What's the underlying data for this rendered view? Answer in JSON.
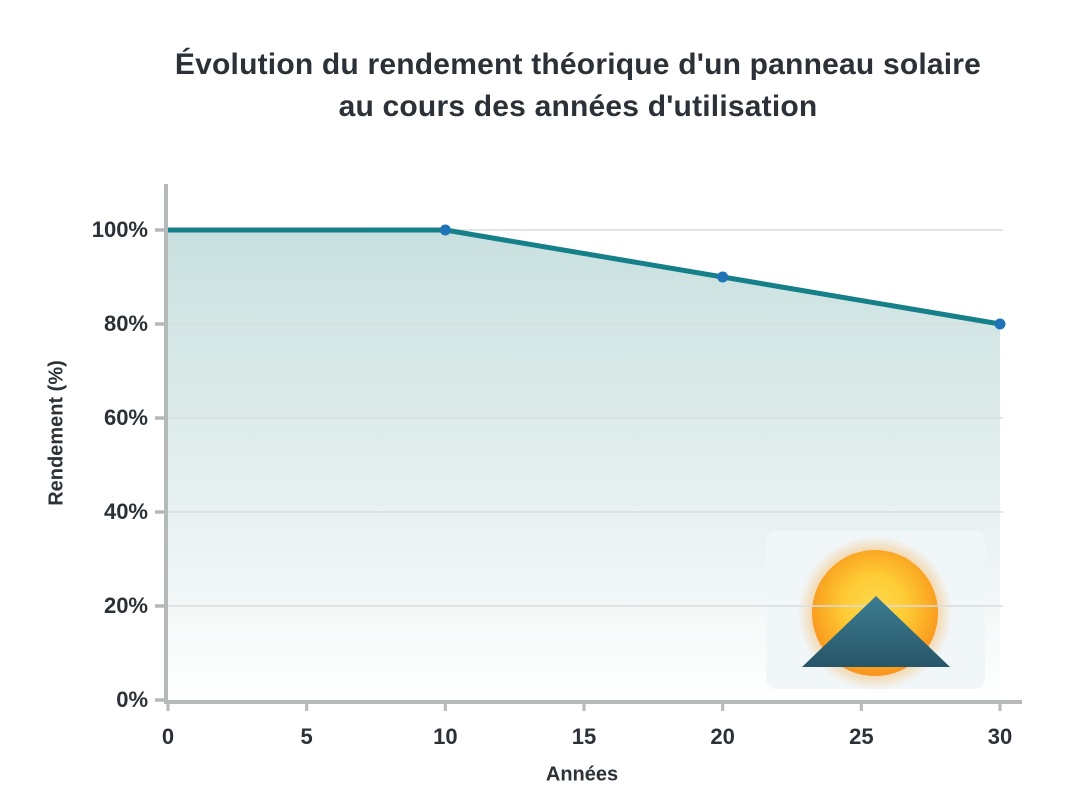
{
  "title": {
    "line1": "Évolution du rendement théorique d'un panneau solaire",
    "line2": "au cours des années d'utilisation"
  },
  "chart_data": {
    "type": "area",
    "x": [
      0,
      10,
      20,
      30
    ],
    "values": [
      100,
      100,
      90,
      80
    ],
    "series_name": "Rendement théorique",
    "marker_x": [
      10,
      20,
      30
    ],
    "xlabel": "Années",
    "ylabel": "Rendement (%)",
    "x_ticks": [
      "0",
      "5",
      "10",
      "15",
      "20",
      "25",
      "30"
    ],
    "x_tick_values": [
      0,
      5,
      10,
      15,
      20,
      25,
      30
    ],
    "y_ticks": [
      "0%",
      "20%",
      "40%",
      "60%",
      "80%",
      "100%"
    ],
    "y_tick_values": [
      0,
      20,
      40,
      60,
      80,
      100
    ],
    "xlim": [
      0,
      30
    ],
    "ylim": [
      0,
      100
    ],
    "grid": "horizontal",
    "legend": "none",
    "colors": {
      "line": "#15808a",
      "marker": "#1f74b8",
      "fill_top": "#c8e0df",
      "fill_bottom": "#ffffff",
      "gridline": "#d9dcdd",
      "axis": "#b6b9ba",
      "text": "#2b3137",
      "sun_core": "#ffd946",
      "sun_edge": "#f8961f",
      "mountain": "#2f6478",
      "logo_background": "#f1f6f8"
    }
  },
  "icons": {
    "sun": "sun-icon",
    "mountain": "mountain-icon"
  }
}
